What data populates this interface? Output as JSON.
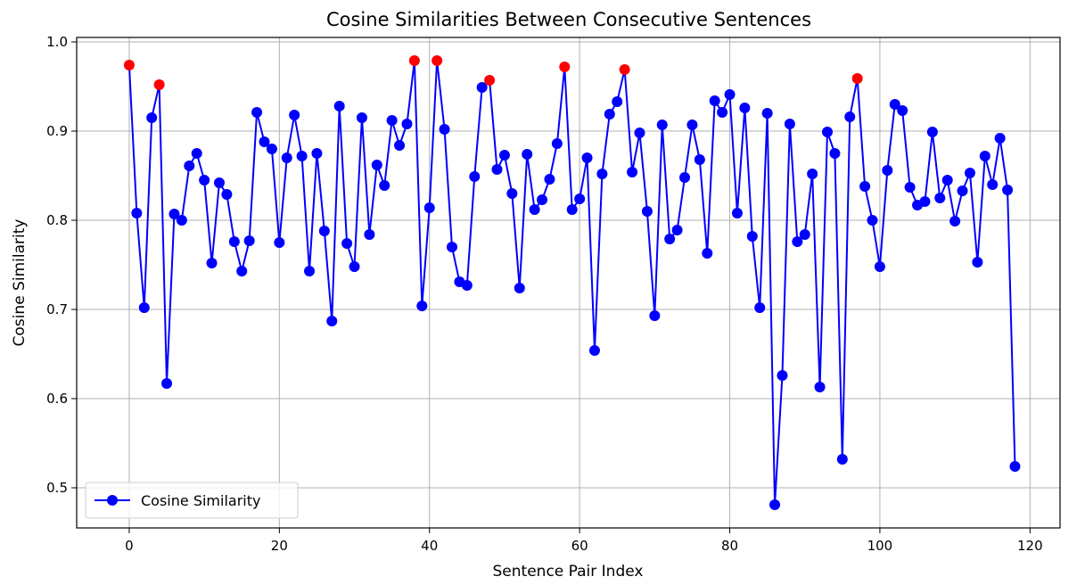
{
  "chart_data": {
    "type": "line",
    "title": "Cosine Similarities Between Consecutive Sentences",
    "xlabel": "Sentence Pair Index",
    "ylabel": "Cosine Similarity",
    "xlim": [
      -7,
      124
    ],
    "ylim": [
      0.455,
      1.005
    ],
    "xticks": [
      0,
      20,
      40,
      60,
      80,
      100,
      120
    ],
    "yticks": [
      0.5,
      0.6,
      0.7,
      0.8,
      0.9,
      1.0
    ],
    "ytick_labels": [
      "0.5",
      "0.6",
      "0.7",
      "0.8",
      "0.9",
      "1.0"
    ],
    "grid": true,
    "legend": {
      "position": "lower-left",
      "entries": [
        "Cosine Similarity"
      ]
    },
    "colors": {
      "line": "#0000ff",
      "highlight": "#ff0000",
      "grid": "#b0b0b0"
    },
    "series": [
      {
        "name": "Cosine Similarity",
        "x_start": 0,
        "values": [
          0.974,
          0.808,
          0.702,
          0.915,
          0.952,
          0.617,
          0.807,
          0.8,
          0.861,
          0.875,
          0.845,
          0.752,
          0.842,
          0.829,
          0.776,
          0.743,
          0.777,
          0.921,
          0.888,
          0.88,
          0.775,
          0.87,
          0.918,
          0.872,
          0.743,
          0.875,
          0.788,
          0.687,
          0.928,
          0.774,
          0.748,
          0.915,
          0.784,
          0.862,
          0.839,
          0.912,
          0.884,
          0.908,
          0.979,
          0.704,
          0.814,
          0.979,
          0.902,
          0.77,
          0.731,
          0.727,
          0.849,
          0.949,
          0.957,
          0.857,
          0.873,
          0.83,
          0.724,
          0.874,
          0.812,
          0.823,
          0.846,
          0.886,
          0.972,
          0.812,
          0.824,
          0.87,
          0.654,
          0.852,
          0.919,
          0.933,
          0.969,
          0.854,
          0.898,
          0.81,
          0.693,
          0.907,
          0.779,
          0.789,
          0.848,
          0.907,
          0.868,
          0.763,
          0.934,
          0.921,
          0.941,
          0.808,
          0.926,
          0.782,
          0.702,
          0.92,
          0.481,
          0.626,
          0.908,
          0.776,
          0.784,
          0.852,
          0.613,
          0.899,
          0.875,
          0.532,
          0.916,
          0.959,
          0.838,
          0.8,
          0.748,
          0.856,
          0.93,
          0.923,
          0.837,
          0.817,
          0.821,
          0.899,
          0.825,
          0.845,
          0.799,
          0.833,
          0.853,
          0.753,
          0.872,
          0.84,
          0.892,
          0.834,
          0.524
        ]
      }
    ],
    "highlighted_indices": [
      0,
      4,
      38,
      41,
      48,
      58,
      66,
      97
    ]
  }
}
